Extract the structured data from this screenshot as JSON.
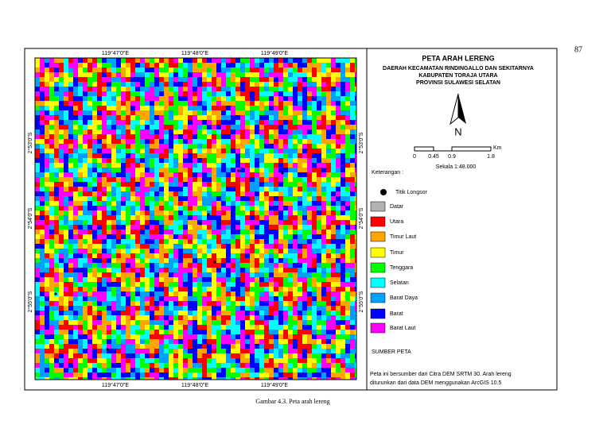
{
  "page_number": "87",
  "map": {
    "x_labels_top": [
      "119°47'0\"E",
      "119°48'0\"E",
      "119°49'0\"E"
    ],
    "x_labels_bottom": [
      "119°47'0\"E",
      "119°48'0\"E",
      "119°49'0\"E"
    ],
    "y_labels_left": [
      "2°53'0\"S",
      "2°54'0\"S",
      "2°55'0\"S"
    ],
    "y_labels_right": [
      "2°53'0\"S",
      "2°54'0\"S",
      "2°55'0\"S"
    ]
  },
  "legend": {
    "title": "PETA ARAH LERENG",
    "subtitle": [
      "DAERAH KECAMATAN RINDINGALLO DAN SEKITARNYA",
      "KABUPATEN TORAJA UTARA",
      "PROVINSI SULAWESI SELATAN"
    ],
    "north": "N",
    "scale": {
      "ticks": [
        "0",
        "0.45",
        "0.9",
        "1.8"
      ],
      "unit": "Km",
      "text": "Sekala 1:48.000"
    },
    "keterangan": "Keterangan :",
    "point": {
      "label": "Titik Longsor",
      "color": "#000000"
    },
    "items": [
      {
        "label": "Datar",
        "color": "#b2b2b2"
      },
      {
        "label": "Utara",
        "color": "#ff0000"
      },
      {
        "label": "Timur Laut",
        "color": "#ffa500"
      },
      {
        "label": "Timur",
        "color": "#ffff00"
      },
      {
        "label": "Tenggara",
        "color": "#00ff00"
      },
      {
        "label": "Selatan",
        "color": "#00ffff"
      },
      {
        "label": "Barat Daya",
        "color": "#00a0ff"
      },
      {
        "label": "Barat",
        "color": "#0000ff"
      },
      {
        "label": "Barat Laut",
        "color": "#ff00ff"
      }
    ]
  },
  "source": {
    "title": "SUMBER PETA",
    "text": [
      "Peta ini bersumber dari Citra DEM SRTM 30. Arah lereng",
      "diturunkan dari data DEM  menggunakan ArcGIS 10.5"
    ]
  },
  "caption": "Gambar 4.3.  Peta arah lereng"
}
